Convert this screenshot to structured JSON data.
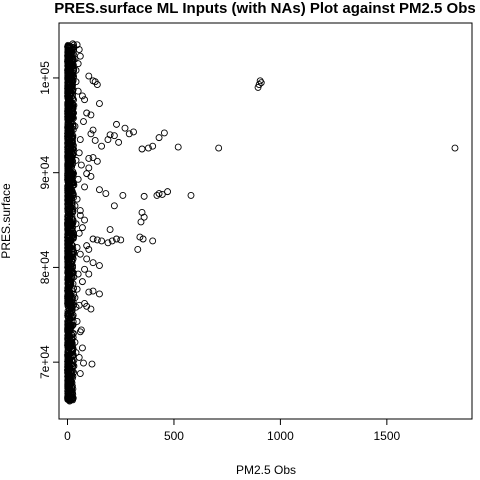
{
  "chart_data": {
    "type": "scatter",
    "title": "PRES.surface ML Inputs (with NAs) Plot against PM2.5 Obs",
    "xlabel": "PM2.5 Obs",
    "ylabel": "PRES.surface",
    "xlim": [
      -40,
      1900
    ],
    "ylim": [
      64000,
      105800
    ],
    "x_ticks": [
      0,
      500,
      1000,
      1500
    ],
    "x_tick_labels": [
      "0",
      "500",
      "1000",
      "1500"
    ],
    "y_ticks": [
      70000,
      80000,
      90000,
      100000
    ],
    "y_tick_labels": [
      "7e+04",
      "8e+04",
      "9e+04",
      "1e+05"
    ],
    "grid": false,
    "legend": "none",
    "marker": "open-circle",
    "dense_band": {
      "x_range": [
        0,
        30
      ],
      "y_range": [
        66000,
        103500
      ]
    },
    "points": [
      [
        895,
        99000
      ],
      [
        900,
        99300
      ],
      [
        905,
        99700
      ],
      [
        910,
        99500
      ],
      [
        1820,
        92600
      ],
      [
        710,
        92600
      ],
      [
        580,
        87600
      ],
      [
        470,
        88000
      ],
      [
        520,
        92700
      ],
      [
        455,
        94200
      ],
      [
        430,
        93700
      ],
      [
        400,
        92800
      ],
      [
        380,
        92600
      ],
      [
        350,
        92500
      ],
      [
        310,
        94300
      ],
      [
        290,
        94100
      ],
      [
        270,
        94700
      ],
      [
        230,
        95100
      ],
      [
        200,
        94000
      ],
      [
        190,
        93500
      ],
      [
        220,
        93900
      ],
      [
        240,
        93200
      ],
      [
        160,
        92800
      ],
      [
        130,
        93400
      ],
      [
        110,
        94100
      ],
      [
        260,
        87600
      ],
      [
        220,
        86500
      ],
      [
        180,
        87800
      ],
      [
        150,
        88200
      ],
      [
        360,
        87500
      ],
      [
        350,
        85800
      ],
      [
        360,
        85300
      ],
      [
        345,
        84800
      ],
      [
        420,
        87600
      ],
      [
        430,
        87800
      ],
      [
        445,
        87700
      ],
      [
        400,
        82800
      ],
      [
        355,
        83000
      ],
      [
        340,
        83200
      ],
      [
        330,
        81900
      ],
      [
        250,
        82900
      ],
      [
        230,
        83000
      ],
      [
        210,
        82800
      ],
      [
        190,
        82600
      ],
      [
        160,
        82800
      ],
      [
        140,
        82900
      ],
      [
        120,
        83000
      ],
      [
        100,
        81900
      ],
      [
        90,
        82300
      ],
      [
        200,
        84000
      ],
      [
        150,
        80200
      ],
      [
        120,
        80500
      ],
      [
        100,
        79300
      ],
      [
        80,
        79800
      ],
      [
        150,
        77200
      ],
      [
        120,
        77500
      ],
      [
        100,
        77400
      ],
      [
        110,
        75600
      ],
      [
        90,
        75900
      ],
      [
        80,
        76200
      ],
      [
        150,
        97300
      ],
      [
        140,
        99300
      ],
      [
        130,
        99600
      ],
      [
        120,
        99700
      ],
      [
        100,
        100200
      ],
      [
        90,
        96300
      ],
      [
        110,
        96100
      ],
      [
        120,
        94500
      ],
      [
        100,
        91500
      ],
      [
        120,
        91600
      ],
      [
        140,
        91200
      ],
      [
        100,
        90500
      ],
      [
        90,
        89900
      ],
      [
        110,
        89600
      ],
      [
        80,
        88500
      ],
      [
        60,
        86000
      ],
      [
        80,
        85000
      ],
      [
        70,
        84200
      ],
      [
        90,
        80900
      ],
      [
        70,
        78500
      ],
      [
        60,
        73200
      ],
      [
        70,
        71500
      ],
      [
        115,
        69800
      ],
      [
        75,
        69900
      ],
      [
        55,
        70500
      ],
      [
        60,
        68800
      ],
      [
        65,
        73400
      ],
      [
        55,
        76000
      ],
      [
        50,
        101500
      ],
      [
        60,
        102300
      ],
      [
        55,
        103000
      ],
      [
        45,
        103500
      ],
      [
        40,
        100800
      ],
      [
        50,
        98600
      ],
      [
        70,
        98100
      ],
      [
        80,
        97700
      ],
      [
        75,
        95400
      ],
      [
        60,
        93500
      ],
      [
        55,
        92100
      ],
      [
        65,
        90800
      ],
      [
        50,
        89300
      ],
      [
        45,
        87200
      ],
      [
        60,
        85500
      ],
      [
        55,
        83600
      ],
      [
        45,
        82100
      ],
      [
        60,
        81400
      ],
      [
        50,
        79300
      ],
      [
        45,
        77700
      ],
      [
        40,
        75800
      ],
      [
        45,
        74300
      ],
      [
        35,
        72100
      ],
      [
        30,
        70200
      ],
      [
        25,
        68500
      ],
      [
        20,
        67300
      ],
      [
        15,
        66400
      ],
      [
        10,
        65900
      ],
      [
        5,
        66200
      ],
      [
        30,
        69600
      ],
      [
        40,
        71000
      ],
      [
        35,
        76800
      ],
      [
        30,
        79000
      ],
      [
        40,
        84600
      ],
      [
        35,
        86500
      ],
      [
        30,
        88700
      ],
      [
        40,
        91300
      ],
      [
        35,
        94900
      ],
      [
        30,
        97100
      ],
      [
        40,
        99600
      ],
      [
        35,
        102000
      ],
      [
        30,
        103200
      ],
      [
        25,
        103600
      ]
    ]
  }
}
